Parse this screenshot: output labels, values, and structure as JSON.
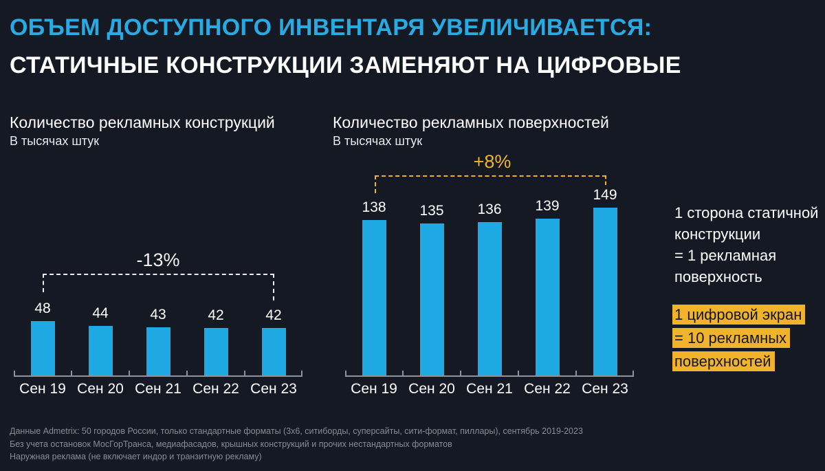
{
  "title": {
    "line1": "ОБЪЕМ ДОСТУПНОГО ИНВЕНТАРЯ УВЕЛИЧИВАЕТСЯ:",
    "line2": "СТАТИЧНЫЕ КОНСТРУКЦИИ ЗАМЕНЯЮТ НА ЦИФРОВЫЕ"
  },
  "colors": {
    "background": "#151924",
    "accent_cyan": "#29ABE2",
    "bar_fill": "#1FA9E2",
    "accent_yellow": "#F2B32C",
    "axis_gray": "#8e939b",
    "footnote_gray": "#878b93"
  },
  "chart_data": [
    {
      "type": "bar",
      "title": "Количество рекламных конструкций",
      "subtitle": "В тысячах штук",
      "categories": [
        "Сен 19",
        "Сен 20",
        "Сен 21",
        "Сен 22",
        "Сен 23"
      ],
      "values": [
        48,
        44,
        43,
        42,
        42
      ],
      "ylim": [
        0,
        160
      ],
      "grid": false,
      "legend": "none",
      "annotation": {
        "label": "-13%",
        "from": "Сен 19",
        "to": "Сен 23",
        "color": "#ececec"
      }
    },
    {
      "type": "bar",
      "title": "Количество рекламных поверхностей",
      "subtitle": "В тысячах штук",
      "categories": [
        "Сен 19",
        "Сен 20",
        "Сен 21",
        "Сен 22",
        "Сен 23"
      ],
      "values": [
        138,
        135,
        136,
        139,
        149
      ],
      "ylim": [
        0,
        160
      ],
      "grid": false,
      "legend": "none",
      "annotation": {
        "label": "+8%",
        "from": "Сен 19",
        "to": "Сен 23",
        "color": "#F2B32C"
      }
    }
  ],
  "side_note": {
    "plain_lines": [
      "1 сторона статичной",
      "конструкции",
      "= 1 рекламная",
      "поверхность"
    ],
    "highlight_lines": [
      "1 цифровой экран",
      "= 10 рекламных",
      "поверхностей"
    ]
  },
  "footnotes": [
    "Данные Admetrix: 50 городов России, только стандартные форматы (3х6, ситиборды, суперсайты, сити-формат, пиллары), сентябрь 2019-2023",
    "Без учета остановок МосГорТранса, медиафасадов, крышных конструкций и прочих нестандартных форматов",
    "Наружная реклама (не включает индор и транзитную рекламу)"
  ]
}
